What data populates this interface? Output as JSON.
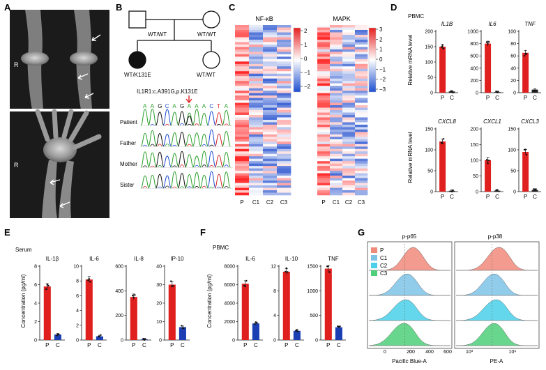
{
  "panels": {
    "A": {
      "label": "A",
      "xray_side_label_knee": "R",
      "xray_side_label_hand": "R"
    },
    "B": {
      "label": "B",
      "pedigree": {
        "father_genotype": "WT/WT",
        "mother_genotype": "WT/WT",
        "patient_genotype": "WT/K131E",
        "sister_genotype": "WT/WT"
      },
      "mutation_label": "IL1R1:c.A391G,p.K131E",
      "sequence_bases": [
        "A",
        "A",
        "G",
        "C",
        "A",
        "G",
        "A",
        "A",
        "A",
        "C",
        "T",
        "A"
      ],
      "trace_rows": [
        "Patient",
        "Father",
        "Mother",
        "Sister"
      ],
      "colors": {
        "A": "#2ca02c",
        "C": "#1f4fd1",
        "G": "#111111",
        "T": "#d62728"
      }
    },
    "C": {
      "label": "C",
      "heatmaps": [
        {
          "title": "NF-κB",
          "legend_ticks": [
            "2",
            "1",
            "0",
            "−1",
            "−2"
          ],
          "columns": [
            "P",
            "C1",
            "C2",
            "C3"
          ]
        },
        {
          "title": "MAPK",
          "legend_ticks": [
            "3",
            "2",
            "1",
            "0",
            "−1",
            "−2",
            "−3"
          ],
          "columns": [
            "P",
            "C1",
            "C2",
            "C3"
          ]
        }
      ]
    },
    "D": {
      "label": "D",
      "subtitle": "PBMC",
      "y_axis_label": "Relative mRNA level"
    },
    "E": {
      "label": "E",
      "subtitle": "Serum",
      "y_axis_label": "Concentration (pg/ml)"
    },
    "F": {
      "label": "F",
      "subtitle": "PBMC",
      "y_axis_label": "Concentration (pg/ml)"
    },
    "G": {
      "label": "G",
      "panels": [
        {
          "title": "p-p65",
          "xlabel": "Pacific Blue-A",
          "ticks": [
            "0",
            "200",
            "400",
            "600"
          ]
        },
        {
          "title": "p-p38",
          "xlabel": "PE-A",
          "ticks": [
            "10³",
            "10⁴"
          ]
        }
      ],
      "legend": [
        {
          "name": "P",
          "color": "#f08a7a"
        },
        {
          "name": "C1",
          "color": "#7ec3e6"
        },
        {
          "name": "C2",
          "color": "#4ad0ea"
        },
        {
          "name": "C3",
          "color": "#4fcf7a"
        }
      ]
    }
  },
  "chart_data": [
    {
      "type": "bar",
      "panel": "D",
      "title": "IL1B",
      "italic": true,
      "categories": [
        "P",
        "C"
      ],
      "values": [
        150,
        4
      ],
      "ylim": [
        0,
        200
      ],
      "ticks": [
        "0",
        "50",
        "100",
        "150",
        "200"
      ]
    },
    {
      "type": "bar",
      "panel": "D",
      "title": "IL6",
      "italic": true,
      "categories": [
        "P",
        "C"
      ],
      "values": [
        800,
        10
      ],
      "ylim": [
        0,
        1000
      ],
      "ticks": [
        "0",
        "200",
        "400",
        "600",
        "800",
        "1000"
      ]
    },
    {
      "type": "bar",
      "panel": "D",
      "title": "TNF",
      "italic": true,
      "categories": [
        "P",
        "C"
      ],
      "values": [
        65,
        5
      ],
      "ylim": [
        0,
        100
      ],
      "ticks": [
        "0",
        "20",
        "40",
        "60",
        "80",
        "100"
      ]
    },
    {
      "type": "bar",
      "panel": "D",
      "title": "CXCL8",
      "italic": true,
      "categories": [
        "P",
        "C"
      ],
      "values": [
        120,
        2
      ],
      "ylim": [
        0,
        150
      ],
      "ticks": [
        "0",
        "50",
        "100",
        "150"
      ]
    },
    {
      "type": "bar",
      "panel": "D",
      "title": "CXCL1",
      "italic": true,
      "categories": [
        "P",
        "C"
      ],
      "values": [
        100,
        3
      ],
      "ylim": [
        0,
        200
      ],
      "ticks": [
        "0",
        "50",
        "100",
        "150",
        "200"
      ]
    },
    {
      "type": "bar",
      "panel": "D",
      "title": "CXCL3",
      "italic": true,
      "categories": [
        "P",
        "C"
      ],
      "values": [
        95,
        4
      ],
      "ylim": [
        0,
        150
      ],
      "ticks": [
        "0",
        "50",
        "100",
        "150"
      ]
    },
    {
      "type": "bar",
      "panel": "E",
      "title": "IL-1β",
      "categories": [
        "P",
        "C"
      ],
      "values": [
        5.8,
        0.6
      ],
      "ylim": [
        0,
        8
      ],
      "ticks": [
        "0",
        "2",
        "4",
        "6",
        "8"
      ]
    },
    {
      "type": "bar",
      "panel": "E",
      "title": "IL-6",
      "categories": [
        "P",
        "C"
      ],
      "values": [
        8.2,
        0.5
      ],
      "ylim": [
        0,
        10
      ],
      "ticks": [
        "0",
        "2",
        "4",
        "6",
        "8",
        "10"
      ]
    },
    {
      "type": "bar",
      "panel": "E",
      "title": "IL-8",
      "categories": [
        "P",
        "C"
      ],
      "values": [
        350,
        5
      ],
      "ylim": [
        0,
        600
      ],
      "ticks": [
        "0",
        "200",
        "400",
        "600"
      ]
    },
    {
      "type": "bar",
      "panel": "E",
      "title": "IP-10",
      "categories": [
        "P",
        "C"
      ],
      "values": [
        30,
        7
      ],
      "ylim": [
        0,
        40
      ],
      "ticks": [
        "0",
        "10",
        "20",
        "30",
        "40"
      ]
    },
    {
      "type": "bar",
      "panel": "F",
      "title": "IL-6",
      "categories": [
        "P",
        "C"
      ],
      "values": [
        6100,
        1800
      ],
      "ylim": [
        0,
        8000
      ],
      "ticks": [
        "0",
        "2000",
        "4000",
        "6000",
        "8000"
      ]
    },
    {
      "type": "bar",
      "panel": "F",
      "title": "IL-10",
      "categories": [
        "P",
        "C"
      ],
      "values": [
        11.1,
        1.5
      ],
      "ylim": [
        0,
        12
      ],
      "ticks": [
        "0",
        "4",
        "8",
        "12"
      ]
    },
    {
      "type": "bar",
      "panel": "F",
      "title": "TNF",
      "categories": [
        "P",
        "C"
      ],
      "values": [
        1450,
        260
      ],
      "ylim": [
        0,
        1500
      ],
      "ticks": [
        "0",
        "500",
        "1000",
        "1500"
      ]
    }
  ]
}
